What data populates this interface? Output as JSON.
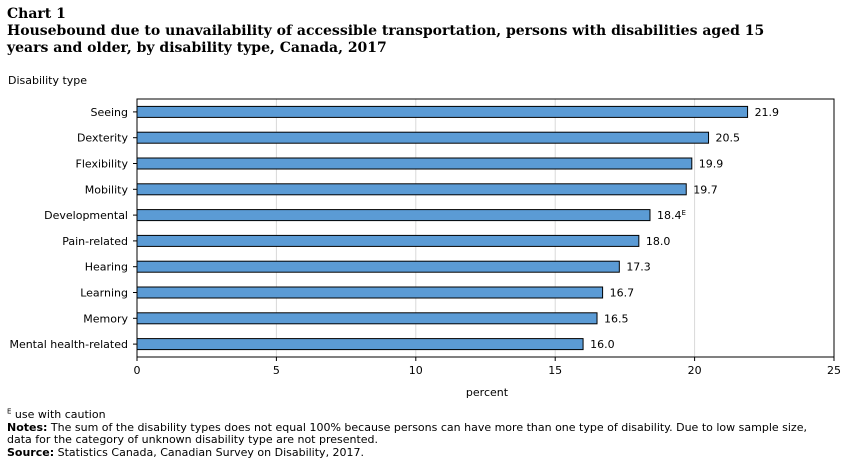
{
  "header": {
    "chart_label": "Chart 1",
    "title": "Housebound due to unavailability of accessible transportation, persons with disabilities aged 15 years and older, by disability type, Canada, 2017"
  },
  "chart_data": {
    "type": "bar",
    "orientation": "horizontal",
    "categories": [
      "Seeing",
      "Dexterity",
      "Flexibility",
      "Mobility",
      "Developmental",
      "Pain-related",
      "Hearing",
      "Learning",
      "Memory",
      "Mental health-related"
    ],
    "values": [
      21.9,
      20.5,
      19.9,
      19.7,
      18.4,
      18.0,
      17.3,
      16.7,
      16.5,
      16.0
    ],
    "value_labels": [
      "21.9",
      "20.5",
      "19.9",
      "19.7",
      "18.4",
      "18.0",
      "17.3",
      "16.7",
      "16.5",
      "16.0"
    ],
    "value_flags": [
      "",
      "",
      "",
      "",
      "E",
      "",
      "",
      "",
      "",
      ""
    ],
    "xlabel": "percent",
    "ylabel": "Disability type",
    "xlim": [
      0,
      25
    ],
    "xticks": [
      0,
      5,
      10,
      15,
      20,
      25
    ],
    "xtick_labels": [
      "0",
      "5",
      "10",
      "15",
      "20",
      "25"
    ],
    "grid": true,
    "bar_color": "#5b9bd5"
  },
  "footnotes": {
    "flag_symbol": "E",
    "flag_text": " use with caution",
    "notes_label": "Notes:",
    "notes_text": " The sum of the disability types does not equal 100% because persons can have more than one type of disability. Due to low sample size, data for the category of unknown disability type are not presented.",
    "source_label": "Source:",
    "source_text": " Statistics Canada, Canadian Survey on Disability, 2017."
  }
}
